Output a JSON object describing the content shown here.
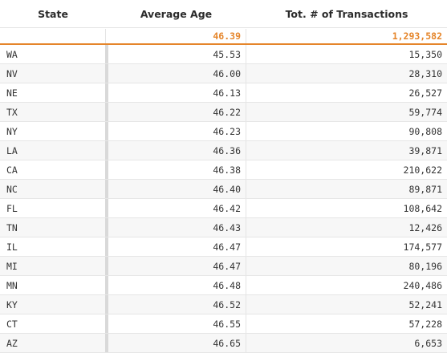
{
  "headers": {
    "state": "State",
    "avg_age": "Average Age",
    "transactions": "Tot. # of Transactions"
  },
  "totals": {
    "avg_age": "46.39",
    "transactions": "1,293,582"
  },
  "accent_color": "#e5852a",
  "rows": [
    {
      "state": "WA",
      "avg_age": "45.53",
      "transactions": "15,350"
    },
    {
      "state": "NV",
      "avg_age": "46.00",
      "transactions": "28,310"
    },
    {
      "state": "NE",
      "avg_age": "46.13",
      "transactions": "26,527"
    },
    {
      "state": "TX",
      "avg_age": "46.22",
      "transactions": "59,774"
    },
    {
      "state": "NY",
      "avg_age": "46.23",
      "transactions": "90,808"
    },
    {
      "state": "LA",
      "avg_age": "46.36",
      "transactions": "39,871"
    },
    {
      "state": "CA",
      "avg_age": "46.38",
      "transactions": "210,622"
    },
    {
      "state": "NC",
      "avg_age": "46.40",
      "transactions": "89,871"
    },
    {
      "state": "FL",
      "avg_age": "46.42",
      "transactions": "108,642"
    },
    {
      "state": "TN",
      "avg_age": "46.43",
      "transactions": "12,426"
    },
    {
      "state": "IL",
      "avg_age": "46.47",
      "transactions": "174,577"
    },
    {
      "state": "MI",
      "avg_age": "46.47",
      "transactions": "80,196"
    },
    {
      "state": "MN",
      "avg_age": "46.48",
      "transactions": "240,486"
    },
    {
      "state": "KY",
      "avg_age": "46.52",
      "transactions": "52,241"
    },
    {
      "state": "CT",
      "avg_age": "46.55",
      "transactions": "57,228"
    },
    {
      "state": "AZ",
      "avg_age": "46.65",
      "transactions": "6,653"
    }
  ]
}
